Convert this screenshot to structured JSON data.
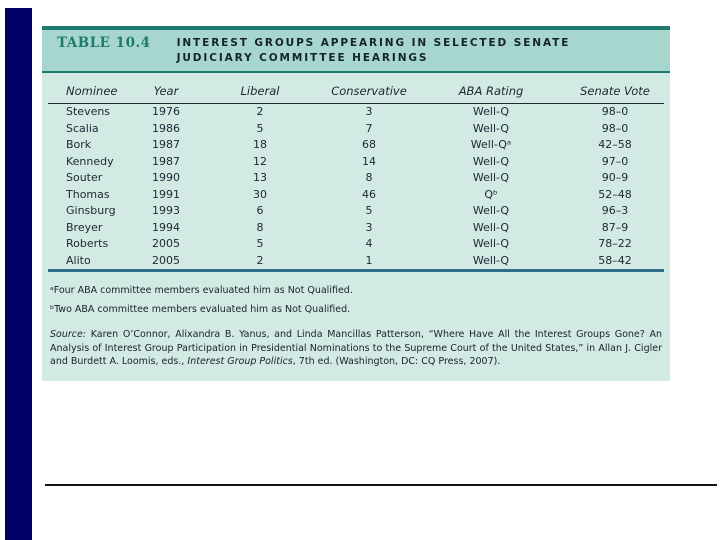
{
  "slide": {
    "colors": {
      "accent_bar": "#000066",
      "band_bg": "#a6d6cd",
      "body_bg": "#d3e9e4",
      "teal_border": "#1e7a70",
      "table_bottom_border": "#2f6e86",
      "label_teal": "#1d7a6e",
      "text_dark": "#16232b"
    }
  },
  "table": {
    "label": "TABLE 10.4",
    "title_line1": "INTEREST GROUPS APPEARING IN SELECTED SENATE",
    "title_line2": "JUDICIARY COMMITTEE HEARINGS",
    "columns": [
      "Nominee",
      "Year",
      "Liberal",
      "Conservative",
      "ABA Rating",
      "Senate Vote"
    ],
    "rows": [
      [
        "Stevens",
        "1976",
        "2",
        "3",
        "Well-Q",
        "98–0"
      ],
      [
        "Scalia",
        "1986",
        "5",
        "7",
        "Well-Q",
        "98–0"
      ],
      [
        "Bork",
        "1987",
        "18",
        "68",
        "Well-Qᵃ",
        "42–58"
      ],
      [
        "Kennedy",
        "1987",
        "12",
        "14",
        "Well-Q",
        "97–0"
      ],
      [
        "Souter",
        "1990",
        "13",
        "8",
        "Well-Q",
        "90–9"
      ],
      [
        "Thomas",
        "1991",
        "30",
        "46",
        "Qᵇ",
        "52–48"
      ],
      [
        "Ginsburg",
        "1993",
        "6",
        "5",
        "Well-Q",
        "96–3"
      ],
      [
        "Breyer",
        "1994",
        "8",
        "3",
        "Well-Q",
        "87–9"
      ],
      [
        "Roberts",
        "2005",
        "5",
        "4",
        "Well-Q",
        "78–22"
      ],
      [
        "Alito",
        "2005",
        "2",
        "1",
        "Well-Q",
        "58–42"
      ]
    ],
    "footnote_a": "ᵃFour ABA committee members evaluated him as Not Qualified.",
    "footnote_b": "ᵇTwo ABA committee members evaluated him as Not Qualified.",
    "source": {
      "prefix": "Source:",
      "body": " Karen O’Connor, Alixandra B. Yanus, and Linda Mancillas Patterson, “Where Have All the Interest Groups Gone? An Analysis of Interest Group Participation in Presidential Nominations to the Supreme Court of the United States,” in Allan J. Cigler and Burdett A. Loomis, eds., ",
      "italic_title": "Interest Group Politics",
      "suffix": ", 7th ed. (Washington, DC: CQ Press, 2007)."
    }
  }
}
